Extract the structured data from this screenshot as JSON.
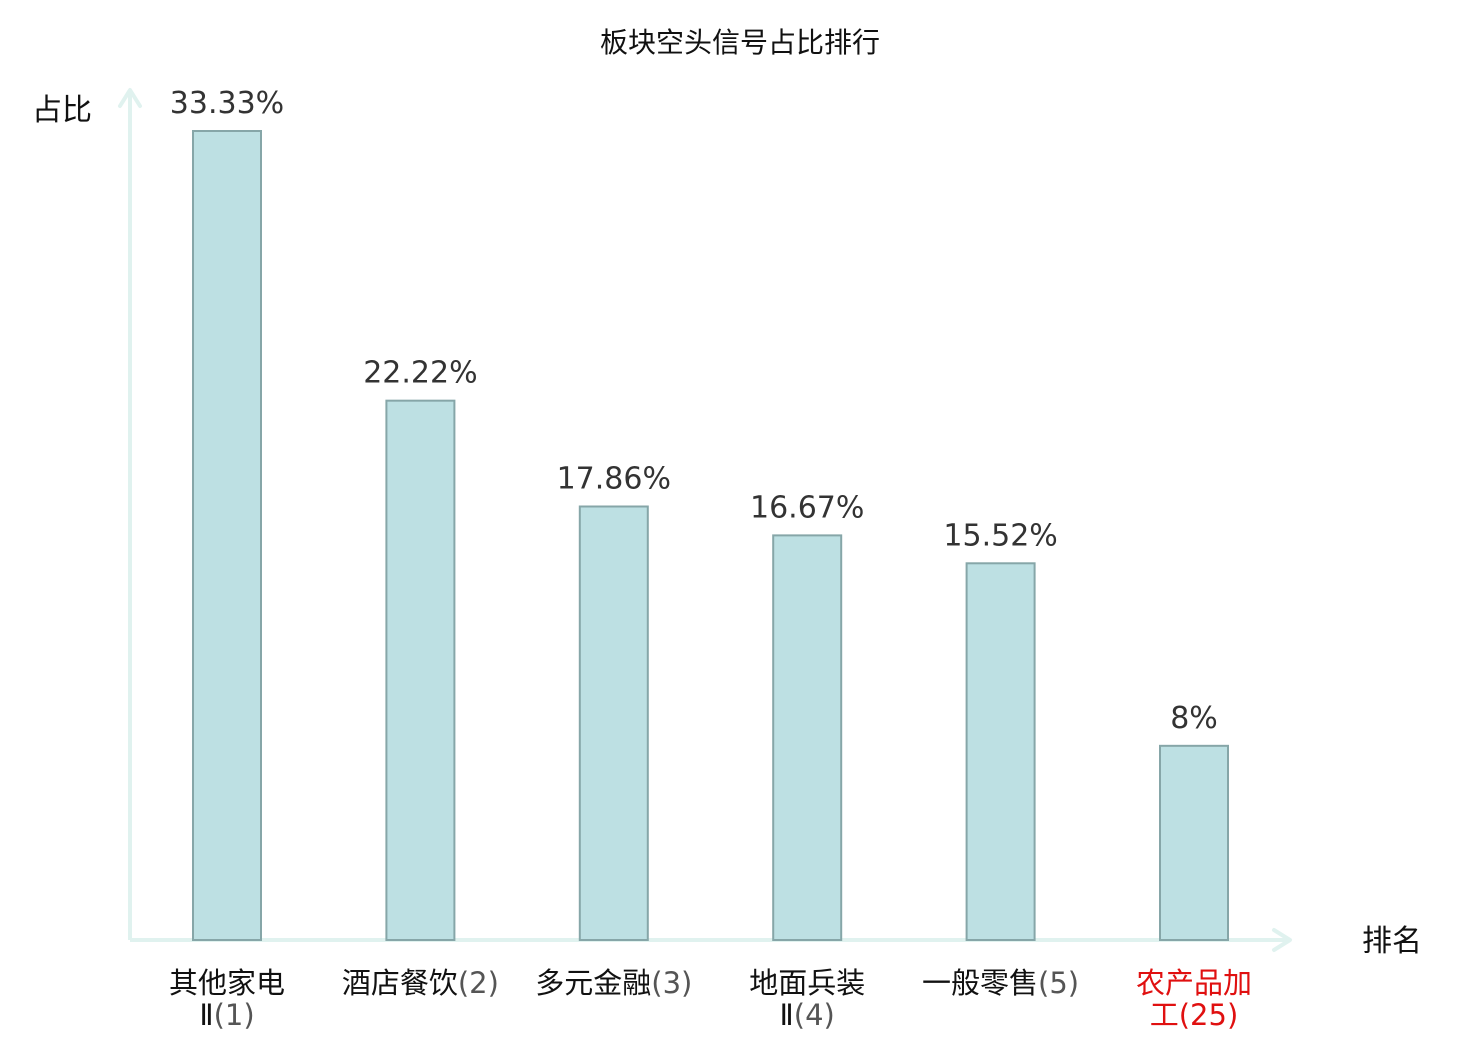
{
  "chart_data": {
    "type": "bar",
    "title": "板块空头信号占比排行",
    "ylabel": "占比",
    "xlabel": "排名",
    "ylim": [
      0,
      33.33
    ],
    "grid": false,
    "value_suffix": "%",
    "categories": [
      {
        "name": "其他家电Ⅱ",
        "rank": "(1)",
        "label": "其他家电Ⅱ(1)",
        "highlight": false
      },
      {
        "name": "酒店餐饮",
        "rank": "(2)",
        "label": "酒店餐饮(2)",
        "highlight": false
      },
      {
        "name": "多元金融",
        "rank": "(3)",
        "label": "多元金融(3)",
        "highlight": false
      },
      {
        "name": "地面兵装Ⅱ",
        "rank": "(4)",
        "label": "地面兵装Ⅱ(4)",
        "highlight": false
      },
      {
        "name": "一般零售",
        "rank": "(5)",
        "label": "一般零售(5)",
        "highlight": false
      },
      {
        "name": "农产品加工",
        "rank": "(25)",
        "label": "农产品加工(25)",
        "highlight": true
      }
    ],
    "values": [
      33.33,
      22.22,
      17.86,
      16.67,
      15.52,
      8
    ],
    "value_labels": [
      "33.33%",
      "22.22%",
      "17.86%",
      "16.67%",
      "15.52%",
      "8%"
    ],
    "colors": {
      "bar_fill": "#bde0e3",
      "bar_stroke": "#86a6a8",
      "axis": "#e0f2ef",
      "highlight_text": "#e01010"
    }
  }
}
